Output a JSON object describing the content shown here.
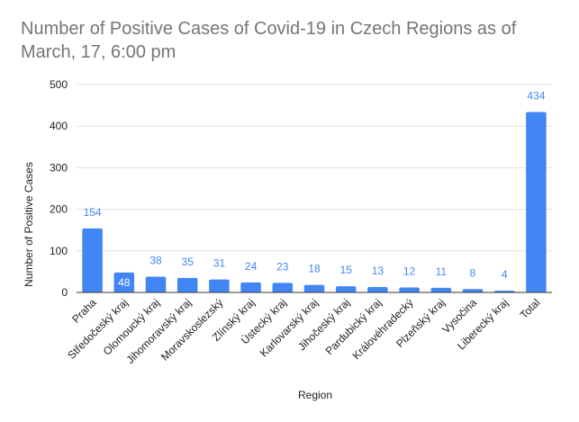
{
  "chart_data": {
    "type": "bar",
    "title": "Number of Positive Cases of Covid-19 in Czech Regions as of March, 17, 6:00 pm",
    "xlabel": "Region",
    "ylabel": "Number of Positive Cases",
    "categories": [
      "Praha",
      "Středočeský kraj",
      "Olomoucký kraj",
      "Jihomoravský kraj",
      "Moravskoslezský",
      "Zlínský kraj",
      "Ústecký kraj",
      "Karlovarský kraj",
      "Jihočeský kraj",
      "Pardubický kraj",
      "Královéhradecký",
      "Plzeňský kraj",
      "Vysočina",
      "Liberecký kraj",
      "Total"
    ],
    "values": [
      154,
      48,
      38,
      35,
      31,
      24,
      23,
      18,
      15,
      13,
      12,
      11,
      8,
      4,
      434
    ],
    "data_labels": [
      "154",
      "48",
      "38",
      "35",
      "31",
      "24",
      "23",
      "18",
      "15",
      "13",
      "12",
      "11",
      "8",
      "4",
      "434"
    ],
    "ylim": [
      0,
      500
    ],
    "yticks": [
      0,
      100,
      200,
      300,
      400,
      500
    ],
    "grid": true,
    "legend": "none",
    "bar_color": "#4285f4",
    "label_color_outside": "#4285f4",
    "label_color_inside": "#ffffff",
    "gridline_color": "#e0e0e0",
    "axis_line_color": "#333333"
  }
}
